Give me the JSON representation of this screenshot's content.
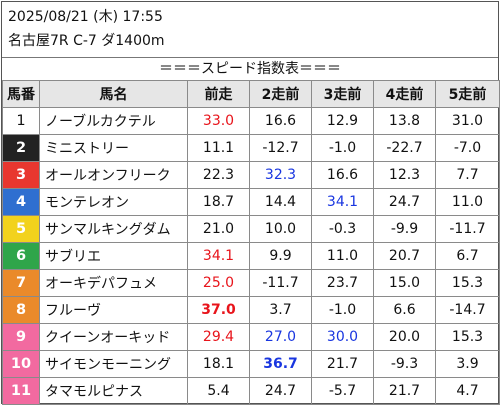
{
  "header": {
    "date_time": "2025/08/21 (木) 17:55",
    "race": "名古屋7R C-7 ダ1400m"
  },
  "banner": "＝＝＝スピード指数表＝＝＝",
  "columns": [
    "馬番",
    "馬名",
    "前走",
    "2走前",
    "3走前",
    "4走前",
    "5走前"
  ],
  "rows": [
    {
      "num": "1",
      "name": "ノーブルカクテル",
      "bg": "#ffffff",
      "fg": "#111111",
      "scores": [
        "33.0",
        "16.6",
        "12.9",
        "13.8",
        "31.0"
      ],
      "styles": [
        "red",
        "",
        "",
        "",
        ""
      ]
    },
    {
      "num": "2",
      "name": "ミニストリー",
      "bg": "#222222",
      "fg": "#ffffff",
      "scores": [
        "11.1",
        "-12.7",
        "-1.0",
        "-22.7",
        "-7.0"
      ],
      "styles": [
        "",
        "",
        "",
        "",
        ""
      ]
    },
    {
      "num": "3",
      "name": "オールオンフリーク",
      "bg": "#e8372f",
      "fg": "#ffffff",
      "scores": [
        "22.3",
        "32.3",
        "16.6",
        "12.3",
        "7.7"
      ],
      "styles": [
        "",
        "blue",
        "",
        "",
        ""
      ]
    },
    {
      "num": "4",
      "name": "モンテレオン",
      "bg": "#2f6fd0",
      "fg": "#ffffff",
      "scores": [
        "18.7",
        "14.4",
        "34.1",
        "24.7",
        "11.0"
      ],
      "styles": [
        "",
        "",
        "blue",
        "",
        ""
      ]
    },
    {
      "num": "5",
      "name": "サンマルキングダム",
      "bg": "#f2d21d",
      "fg": "#ffffff",
      "scores": [
        "21.0",
        "10.0",
        "-0.3",
        "-9.9",
        "-11.7"
      ],
      "styles": [
        "",
        "",
        "",
        "",
        ""
      ]
    },
    {
      "num": "6",
      "name": "サブリエ",
      "bg": "#2fa54a",
      "fg": "#ffffff",
      "scores": [
        "34.1",
        "9.9",
        "11.0",
        "20.7",
        "6.7"
      ],
      "styles": [
        "red",
        "",
        "",
        "",
        ""
      ]
    },
    {
      "num": "7",
      "name": "オーキデパフュメ",
      "bg": "#ea8a2a",
      "fg": "#ffffff",
      "scores": [
        "25.0",
        "-11.7",
        "23.7",
        "15.0",
        "15.3"
      ],
      "styles": [
        "red",
        "",
        "",
        "",
        ""
      ]
    },
    {
      "num": "8",
      "name": "フルーヴ",
      "bg": "#ea8a2a",
      "fg": "#ffffff",
      "scores": [
        "37.0",
        "3.7",
        "-1.0",
        "6.6",
        "-14.7"
      ],
      "styles": [
        "red bold",
        "",
        "",
        "",
        ""
      ]
    },
    {
      "num": "9",
      "name": "クイーンオーキッド",
      "bg": "#f26aa0",
      "fg": "#ffffff",
      "scores": [
        "29.4",
        "27.0",
        "30.0",
        "20.0",
        "15.3"
      ],
      "styles": [
        "red",
        "blue",
        "blue",
        "",
        ""
      ]
    },
    {
      "num": "10",
      "name": "サイモンモーニング",
      "bg": "#f26aa0",
      "fg": "#ffffff",
      "scores": [
        "18.1",
        "36.7",
        "21.7",
        "-9.3",
        "3.9"
      ],
      "styles": [
        "",
        "blue bold",
        "",
        "",
        ""
      ]
    },
    {
      "num": "11",
      "name": "タマモルピナス",
      "bg": "#f26aa0",
      "fg": "#ffffff",
      "scores": [
        "5.4",
        "24.7",
        "-5.7",
        "21.7",
        "4.7"
      ],
      "styles": [
        "",
        "",
        "",
        "",
        ""
      ]
    }
  ]
}
